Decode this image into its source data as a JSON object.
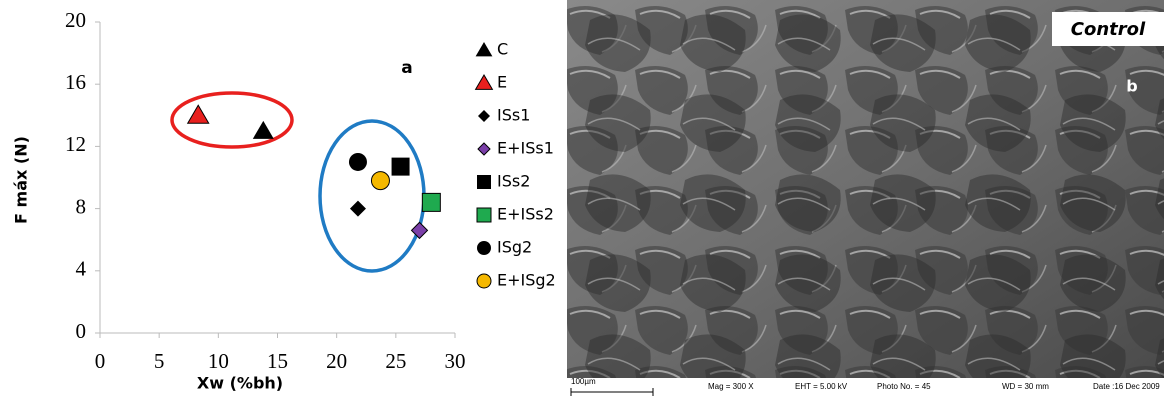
{
  "chart_data": {
    "type": "scatter",
    "x_label": "Xw (%bh)",
    "y_label": "F máx  (N)",
    "annotation": "a",
    "xlim": [
      0,
      30
    ],
    "xticks": [
      0,
      5,
      10,
      15,
      20,
      25,
      30
    ],
    "ylim": [
      0,
      20
    ],
    "yticks": [
      0,
      4,
      8,
      12,
      16,
      20
    ],
    "series": [
      {
        "name": "C",
        "color": "#000000",
        "marker": "triangle",
        "x": [
          13.8
        ],
        "values": [
          13.0
        ]
      },
      {
        "name": "E",
        "color": "#e8201e",
        "marker": "triangle",
        "x": [
          8.3
        ],
        "values": [
          14.0
        ]
      },
      {
        "name": "ISs1",
        "color": "#000000",
        "marker": "diamond",
        "x": [
          21.8
        ],
        "values": [
          8.0
        ]
      },
      {
        "name": "E+ISs1",
        "color": "#7a3fa8",
        "marker": "diamond",
        "x": [
          27.0
        ],
        "values": [
          6.6
        ]
      },
      {
        "name": "ISs2",
        "color": "#000000",
        "marker": "square",
        "x": [
          25.4
        ],
        "values": [
          10.7
        ]
      },
      {
        "name": "E+ISs2",
        "color": "#1faa4f",
        "marker": "square",
        "x": [
          28.0
        ],
        "values": [
          8.4
        ]
      },
      {
        "name": "ISg2",
        "color": "#000000",
        "marker": "circle",
        "x": [
          21.8
        ],
        "values": [
          11.0
        ]
      },
      {
        "name": "E+ISg2",
        "color": "#f5b800",
        "marker": "circle",
        "x": [
          23.7
        ],
        "values": [
          9.8
        ]
      }
    ]
  },
  "image": {
    "label": "Control",
    "panel_label": "b",
    "scale_bar": "100µm",
    "info": [
      "Mag =   300 X",
      "EHT =  5.00 kV",
      "Photo No. = 45",
      "WD =   30 mm",
      "Date :16 Dec 2009"
    ]
  }
}
